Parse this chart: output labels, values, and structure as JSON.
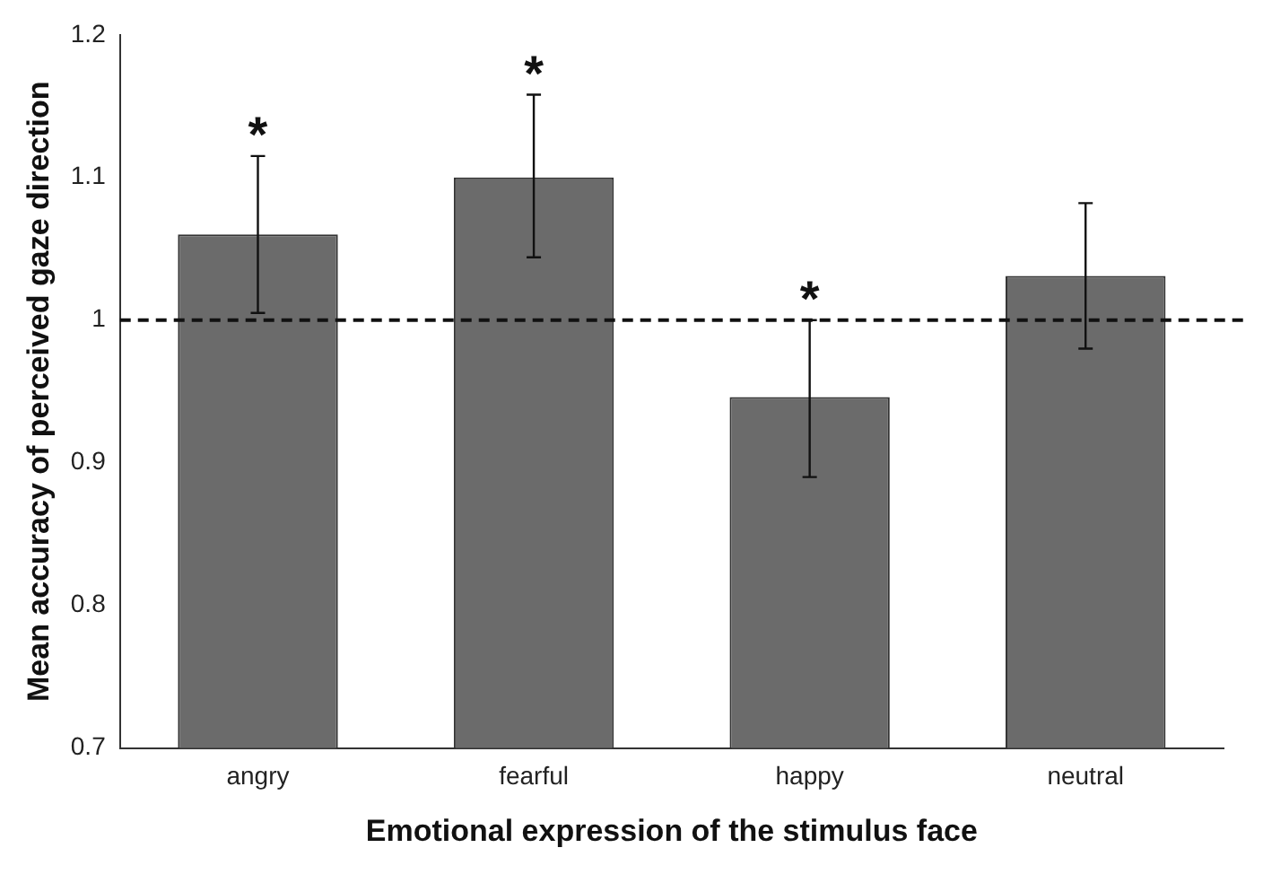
{
  "chart_data": {
    "type": "bar",
    "xlabel": "Emotional expression of the stimulus face",
    "ylabel": "Mean accuracy of perceived gaze direction",
    "categories": [
      "angry",
      "fearful",
      "happy",
      "neutral"
    ],
    "values": [
      1.06,
      1.1,
      0.946,
      1.031
    ],
    "errors": [
      [
        1.005,
        1.115
      ],
      [
        1.044,
        1.158
      ],
      [
        0.89,
        1.0
      ],
      [
        0.98,
        1.082
      ]
    ],
    "color": "#6b6b6b",
    "ylim": [
      0.7,
      1.2
    ],
    "yticks": [
      0.7,
      0.8,
      0.9,
      1,
      1.1,
      1.2
    ],
    "ref_lines": [
      {
        "axis": "y",
        "value": 1,
        "line_style": "dashed",
        "color": "#111111"
      }
    ],
    "annotations": [
      {
        "text": "*",
        "x": "angry",
        "y": 1.115
      },
      {
        "text": "*",
        "x": "fearful",
        "y": 1.158
      },
      {
        "text": "*",
        "x": "happy",
        "y": 1.0
      }
    ],
    "grid": false,
    "legend": false
  }
}
